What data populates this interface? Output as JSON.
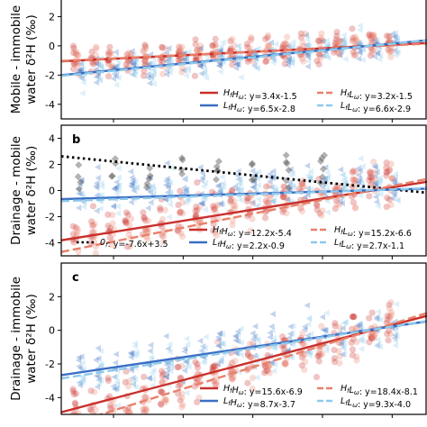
{
  "figure": {
    "colors": {
      "HfHw": "#c9302c",
      "HfLw": "#e8806a",
      "LfHw": "#3a6fc4",
      "LfLw": "#8ec9ea",
      "zero_f": "#000000",
      "diamond": "#555555"
    }
  },
  "chart_data": [
    {
      "type": "scatter",
      "panel_letter": "",
      "ylabel": "Mobile - immobile water δ²H (‰)",
      "ylim": [
        -5,
        4
      ],
      "yticks": [
        -4,
        -2,
        0,
        2
      ],
      "xlim": [
        -0.45,
        0.6
      ],
      "xticks": [
        -0.3,
        -0.1,
        0.1,
        0.3,
        0.5
      ],
      "legend_position": "lower-right",
      "series": [
        {
          "key": "HfHw",
          "name": "HfHω: y=3.4x-1.5",
          "slope": 3.4,
          "intercept": -1.5,
          "style": "solid"
        },
        {
          "key": "HfLw",
          "name": "HfLω: y=3.2x-1.5",
          "slope": 3.2,
          "intercept": -1.5,
          "style": "dashed"
        },
        {
          "key": "LfHw",
          "name": "LfHω: y=6.5x-2.8",
          "slope": 6.5,
          "intercept": -2.8,
          "style": "solid"
        },
        {
          "key": "LfLw",
          "name": "LfLω: y=6.6x-2.9",
          "slope": 6.6,
          "intercept": -2.9,
          "style": "dashed"
        }
      ],
      "scatter": {
        "x_groups": [
          -0.4,
          -0.35,
          -0.3,
          -0.25,
          -0.2,
          -0.15,
          -0.1,
          -0.05,
          0.0,
          0.05,
          0.1,
          0.15,
          0.2,
          0.25,
          0.3,
          0.35,
          0.4,
          0.45,
          0.5
        ],
        "center": 0.0,
        "spread": 1.0
      }
    },
    {
      "type": "scatter",
      "panel_letter": "b",
      "ylabel": "Drainage - mobile water δ²H (‰)",
      "ylim": [
        -5,
        5
      ],
      "yticks": [
        -4,
        -2,
        0,
        2,
        4
      ],
      "xlim": [
        -0.45,
        0.6
      ],
      "xticks": [
        -0.3,
        -0.1,
        0.1,
        0.3,
        0.5
      ],
      "legend_position": "lower-right",
      "series": [
        {
          "key": "zero_f",
          "name": "0f: y=-7.6x+3.5",
          "slope": -7.6,
          "intercept": 3.5,
          "style": "dotted"
        },
        {
          "key": "HfHw",
          "name": "HfHω: y=12.2x-5.4",
          "slope": 12.2,
          "intercept": -5.4,
          "style": "solid"
        },
        {
          "key": "HfLw",
          "name": "HfLω: y=15.2x-6.6",
          "slope": 15.2,
          "intercept": -6.6,
          "style": "dashed"
        },
        {
          "key": "LfHw",
          "name": "LfHω: y=2.2x-0.9",
          "slope": 2.2,
          "intercept": -0.9,
          "style": "solid"
        },
        {
          "key": "LfLw",
          "name": "LfLω: y=2.7x-1.1",
          "slope": 2.7,
          "intercept": -1.1,
          "style": "dashed"
        }
      ],
      "scatter": {
        "x_groups": [
          -0.4,
          -0.35,
          -0.3,
          -0.25,
          -0.2,
          -0.15,
          -0.1,
          -0.05,
          0.0,
          0.05,
          0.1,
          0.15,
          0.2,
          0.25,
          0.3,
          0.35,
          0.4,
          0.45,
          0.5
        ],
        "center": 0.5,
        "spread": 1.6
      }
    },
    {
      "type": "scatter",
      "panel_letter": "c",
      "ylabel": "Drainage - immobile water δ²H (‰)",
      "ylim": [
        -5,
        4
      ],
      "yticks": [
        -4,
        -2,
        0,
        2
      ],
      "xlim": [
        -0.45,
        0.6
      ],
      "xticks": [
        -0.3,
        -0.1,
        0.1,
        0.3,
        0.5
      ],
      "legend_position": "lower-right",
      "series": [
        {
          "key": "HfHw",
          "name": "HfHω: y=15.6x-6.9",
          "slope": 15.6,
          "intercept": -6.9,
          "style": "solid"
        },
        {
          "key": "HfLw",
          "name": "HfLω: y=18.4x-8.1",
          "slope": 18.4,
          "intercept": -8.1,
          "style": "dashed"
        },
        {
          "key": "LfHw",
          "name": "LfHω: y=8.7x-3.7",
          "slope": 8.7,
          "intercept": -3.7,
          "style": "solid"
        },
        {
          "key": "LfLw",
          "name": "LfLω: y=9.3x-4.0",
          "slope": 9.3,
          "intercept": -4.0,
          "style": "dashed"
        }
      ],
      "scatter": {
        "x_groups": [
          -0.4,
          -0.35,
          -0.3,
          -0.25,
          -0.2,
          -0.15,
          -0.1,
          -0.05,
          0.0,
          0.05,
          0.1,
          0.15,
          0.2,
          0.25,
          0.3,
          0.35,
          0.4,
          0.45,
          0.5
        ],
        "center": 0.0,
        "spread": 1.4
      }
    }
  ]
}
